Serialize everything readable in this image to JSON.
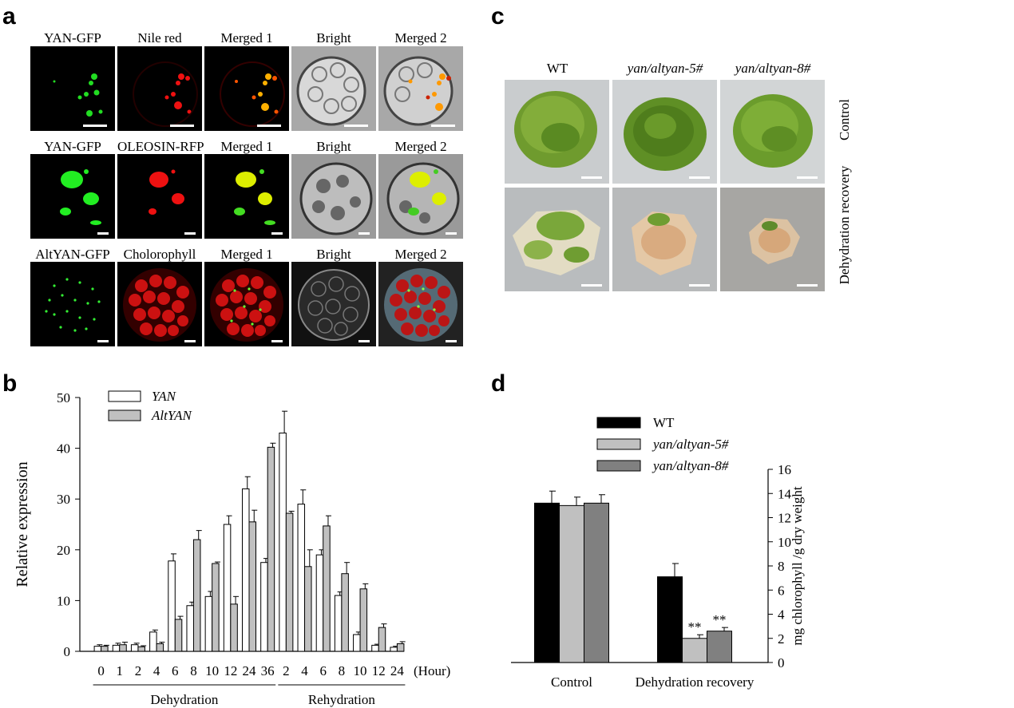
{
  "panels": {
    "a": "a",
    "b": "b",
    "c": "c",
    "d": "d"
  },
  "panel_a": {
    "rows": [
      {
        "labels": [
          "YAN-GFP",
          "Nile red",
          "Merged 1",
          "Bright",
          "Merged 2"
        ]
      },
      {
        "labels": [
          "YAN-GFP",
          "OLEOSIN-RFP",
          "Merged 1",
          "Bright",
          "Merged 2"
        ]
      },
      {
        "labels": [
          "AltYAN-GFP",
          "Cholorophyll",
          "Merged 1",
          "Bright",
          "Merged 2"
        ]
      }
    ]
  },
  "panel_c": {
    "col_labels": [
      "WT",
      "yan/altyan-5#",
      "yan/altyan-8#"
    ],
    "row_labels": [
      "Control",
      "Dehydration recovery"
    ]
  },
  "chart_data": [
    {
      "type": "bar",
      "ylabel": "Relative expression",
      "ylim": [
        0,
        50
      ],
      "yticks": [
        "0",
        "10",
        "20",
        "30",
        "40",
        "50"
      ],
      "categories": [
        "0",
        "1",
        "2",
        "4",
        "6",
        "8",
        "10",
        "12",
        "24",
        "36",
        "2",
        "4",
        "6",
        "8",
        "10",
        "12",
        "24"
      ],
      "x_unit": "(Hour)",
      "groups": [
        {
          "label": "Dehydration",
          "count": 10
        },
        {
          "label": "Rehydration",
          "count": 7
        }
      ],
      "legend_position": "top-left",
      "series": [
        {
          "name": "YAN",
          "color": "#ffffff",
          "values": [
            1.0,
            1.2,
            1.3,
            3.8,
            17.8,
            9.0,
            10.8,
            25.0,
            32.0,
            17.5,
            43.0,
            29.0,
            19.0,
            11.0,
            3.3,
            1.2,
            0.8
          ],
          "errors": [
            0.3,
            0.4,
            0.3,
            0.4,
            1.4,
            0.7,
            1.0,
            1.7,
            2.4,
            0.8,
            4.3,
            2.8,
            1.0,
            0.7,
            0.5,
            0.2,
            0.2
          ]
        },
        {
          "name": "AltYAN",
          "color": "#c0c0c0",
          "values": [
            1.0,
            1.3,
            0.9,
            1.5,
            6.3,
            22.0,
            17.3,
            9.3,
            25.5,
            40.2,
            27.2,
            16.7,
            24.7,
            15.3,
            12.3,
            4.7,
            1.5
          ],
          "errors": [
            0.2,
            0.5,
            0.2,
            0.3,
            0.6,
            1.8,
            0.3,
            1.5,
            2.3,
            0.8,
            0.4,
            3.3,
            2.0,
            2.2,
            1.0,
            0.7,
            0.4
          ]
        }
      ]
    },
    {
      "type": "bar",
      "ylabel": "mg chlorophyll /g dry weight",
      "ylim": [
        0,
        16
      ],
      "yticks": [
        "0",
        "2",
        "4",
        "6",
        "8",
        "10",
        "12",
        "14",
        "16"
      ],
      "categories": [
        "Control",
        "Dehydration recovery"
      ],
      "legend_position": "top-left",
      "series": [
        {
          "name": "WT",
          "color": "#000000",
          "values": [
            13.2,
            7.1
          ],
          "errors": [
            1.0,
            1.1
          ]
        },
        {
          "name": "yan/altyan-5#",
          "color": "#c0c0c0",
          "values": [
            13.0,
            2.0
          ],
          "errors": [
            0.7,
            0.3
          ]
        },
        {
          "name": "yan/altyan-8#",
          "color": "#808080",
          "values": [
            13.2,
            2.6
          ],
          "errors": [
            0.7,
            0.3
          ]
        }
      ],
      "annotations": [
        "**",
        "**"
      ]
    }
  ]
}
